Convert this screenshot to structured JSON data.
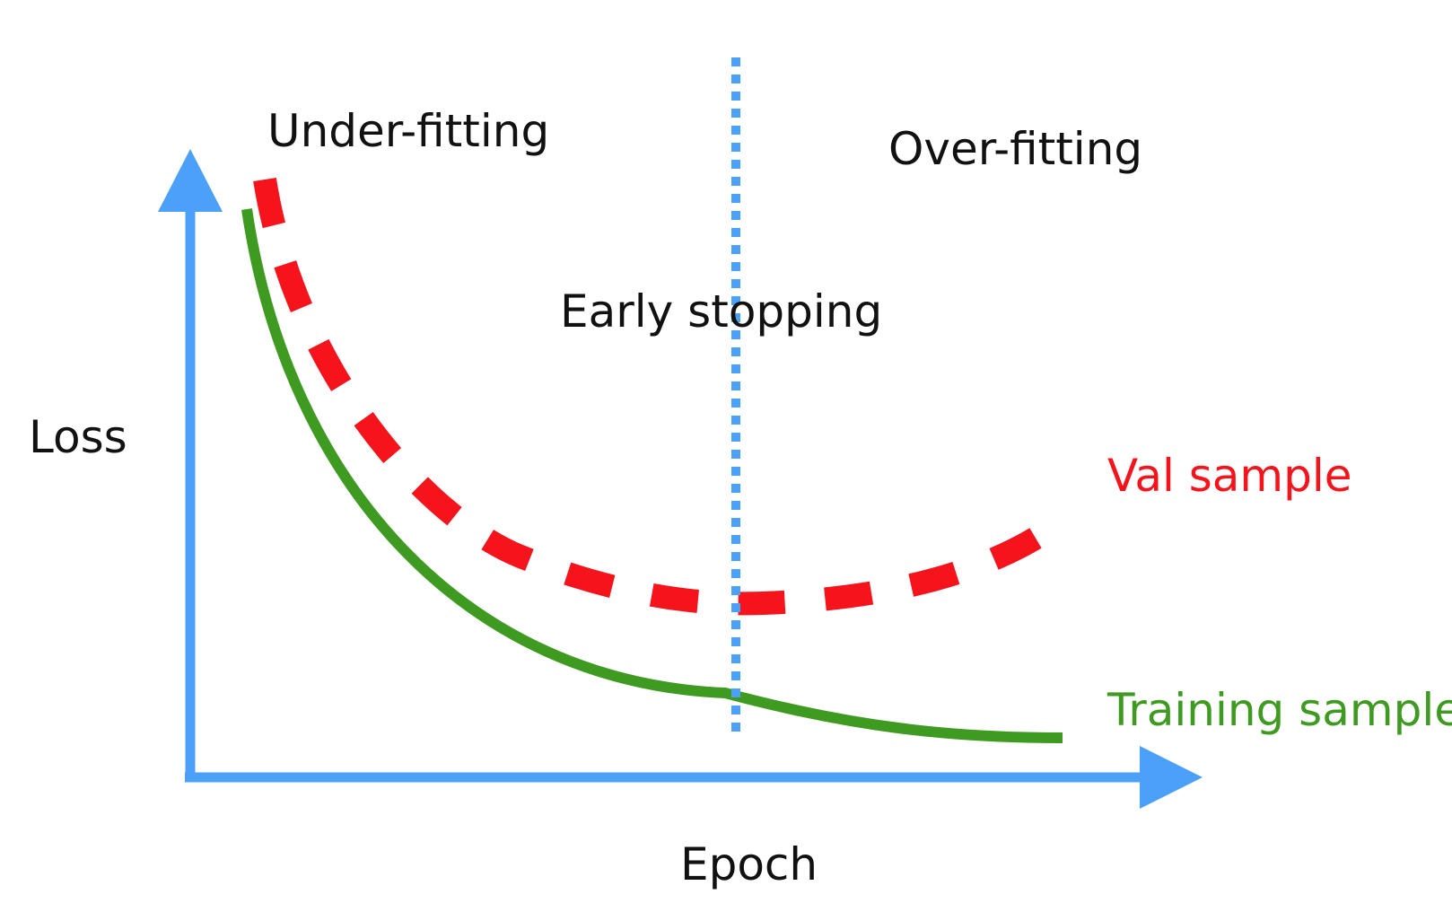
{
  "labels": {
    "y_axis": "Loss",
    "x_axis": "Epoch",
    "underfitting": "Under-fitting",
    "overfitting": "Over-fitting",
    "early_stopping": "Early stopping",
    "val_series": "Val sample",
    "train_series": "Training sample"
  },
  "colors": {
    "axis": "#4ba0f7",
    "early_stop_line": "#4ba0f7",
    "val_curve": "#f5141b",
    "train_curve": "#3f9a22",
    "text": "#111111"
  }
}
